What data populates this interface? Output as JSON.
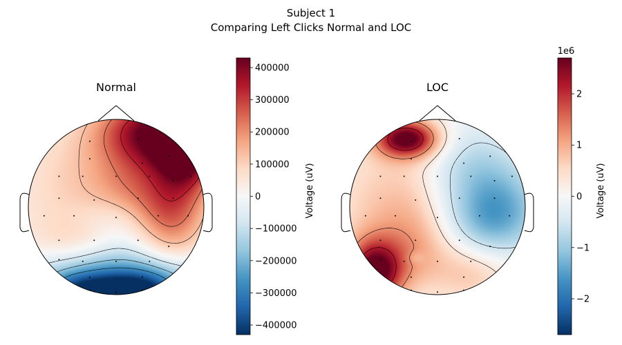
{
  "suptitle": {
    "line1": "Subject 1",
    "line2": "Comparing Left Clicks Normal and LOC"
  },
  "chart_data": [
    {
      "type": "heatmap",
      "title": "Normal",
      "colormap": "RdBu_r",
      "colorbar": {
        "label": "Voltage (uV)",
        "range": [
          -430000,
          430000
        ],
        "ticks": [
          400000,
          300000,
          200000,
          100000,
          0,
          -100000,
          -200000,
          -300000,
          -400000
        ],
        "tick_labels": [
          "400000",
          "300000",
          "200000",
          "100000",
          "0",
          "−100000",
          "−200000",
          "−300000",
          "−400000"
        ],
        "offset_label": ""
      },
      "blobs": [
        {
          "x": 0.45,
          "y": -0.85,
          "v": 430000,
          "sx": 0.45,
          "sy": 0.3
        },
        {
          "x": 0.8,
          "y": -0.55,
          "v": 330000,
          "sx": 0.25,
          "sy": 0.3
        },
        {
          "x": 0.62,
          "y": 0.1,
          "v": 230000,
          "sx": 0.3,
          "sy": 0.3
        },
        {
          "x": 0.2,
          "y": -0.25,
          "v": 120000,
          "sx": 0.35,
          "sy": 0.25
        },
        {
          "x": -0.5,
          "y": -0.3,
          "v": 90000,
          "sx": 0.5,
          "sy": 0.5
        },
        {
          "x": -0.45,
          "y": 0.35,
          "v": 70000,
          "sx": 0.4,
          "sy": 0.25
        },
        {
          "x": -0.2,
          "y": 0.12,
          "v": -35000,
          "sx": 0.35,
          "sy": 0.15
        },
        {
          "x": 0.05,
          "y": 0.35,
          "v": -50000,
          "sx": 0.3,
          "sy": 0.2
        },
        {
          "x": 0.0,
          "y": 0.78,
          "v": -240000,
          "sx": 0.65,
          "sy": 0.22
        },
        {
          "x": -0.35,
          "y": 0.98,
          "v": -320000,
          "sx": 0.35,
          "sy": 0.15
        },
        {
          "x": 0.3,
          "y": 0.98,
          "v": -310000,
          "sx": 0.3,
          "sy": 0.15
        },
        {
          "x": 0.65,
          "y": 0.5,
          "v": 40000,
          "sx": 0.25,
          "sy": 0.15
        }
      ],
      "contour_levels": [
        330000,
        230000,
        130000,
        -70000,
        -170000,
        -270000
      ],
      "sensors": [
        [
          -0.3,
          -0.75
        ],
        [
          0.25,
          -0.78
        ],
        [
          0.6,
          -0.58
        ],
        [
          -0.3,
          -0.55
        ],
        [
          0.3,
          -0.5
        ],
        [
          0.85,
          -0.35
        ],
        [
          -0.65,
          -0.35
        ],
        [
          -0.38,
          -0.35
        ],
        [
          0.0,
          -0.35
        ],
        [
          0.38,
          -0.35
        ],
        [
          0.65,
          -0.3
        ],
        [
          -0.65,
          -0.1
        ],
        [
          -0.25,
          -0.08
        ],
        [
          0.25,
          -0.1
        ],
        [
          0.65,
          -0.1
        ],
        [
          -0.82,
          0.1
        ],
        [
          -0.48,
          0.1
        ],
        [
          0.0,
          0.12
        ],
        [
          0.48,
          0.1
        ],
        [
          0.82,
          0.1
        ],
        [
          -0.65,
          0.38
        ],
        [
          -0.25,
          0.38
        ],
        [
          0.25,
          0.38
        ],
        [
          0.6,
          0.45
        ],
        [
          -0.65,
          0.6
        ],
        [
          -0.38,
          0.62
        ],
        [
          0.0,
          0.62
        ],
        [
          0.38,
          0.62
        ],
        [
          -0.3,
          0.8
        ],
        [
          0.3,
          0.8
        ],
        [
          -0.3,
          0.95
        ],
        [
          0.0,
          0.97
        ],
        [
          0.3,
          0.95
        ]
      ]
    },
    {
      "type": "heatmap",
      "title": "LOC",
      "colormap": "RdBu_r",
      "colorbar": {
        "label": "Voltage (uV)",
        "range": [
          -2700000,
          2700000
        ],
        "ticks": [
          2000000,
          1000000,
          0,
          -1000000,
          -2000000
        ],
        "tick_labels": [
          "2",
          "1",
          "0",
          "−1",
          "−2"
        ],
        "offset_label": "1e6"
      },
      "blobs": [
        {
          "x": -0.35,
          "y": -0.78,
          "v": 2700000,
          "sx": 0.25,
          "sy": 0.15
        },
        {
          "x": -0.72,
          "y": 0.75,
          "v": 2600000,
          "sx": 0.22,
          "sy": 0.25
        },
        {
          "x": -0.45,
          "y": -0.1,
          "v": 700000,
          "sx": 0.55,
          "sy": 0.55
        },
        {
          "x": -0.2,
          "y": 0.5,
          "v": 800000,
          "sx": 0.45,
          "sy": 0.35
        },
        {
          "x": 0.45,
          "y": 0.75,
          "v": 600000,
          "sx": 0.3,
          "sy": 0.25
        },
        {
          "x": 0.75,
          "y": 0.05,
          "v": -1200000,
          "sx": 0.35,
          "sy": 0.35
        },
        {
          "x": 0.4,
          "y": -0.45,
          "v": -800000,
          "sx": 0.35,
          "sy": 0.35
        },
        {
          "x": 0.4,
          "y": 0.25,
          "v": -700000,
          "sx": 0.3,
          "sy": 0.3
        },
        {
          "x": 0.05,
          "y": 0.0,
          "v": -200000,
          "sx": 0.2,
          "sy": 0.5
        },
        {
          "x": -0.25,
          "y": 0.58,
          "v": -300000,
          "sx": 0.07,
          "sy": 0.05
        }
      ],
      "contour_levels": [
        2150000,
        1250000,
        300000,
        -550000
      ],
      "sensors": [
        [
          -0.3,
          -0.75
        ],
        [
          0.25,
          -0.78
        ],
        [
          0.6,
          -0.58
        ],
        [
          -0.3,
          -0.55
        ],
        [
          0.3,
          -0.5
        ],
        [
          0.85,
          -0.35
        ],
        [
          -0.65,
          -0.35
        ],
        [
          -0.38,
          -0.35
        ],
        [
          0.0,
          -0.35
        ],
        [
          0.38,
          -0.35
        ],
        [
          0.65,
          -0.3
        ],
        [
          -0.65,
          -0.1
        ],
        [
          -0.25,
          -0.08
        ],
        [
          0.25,
          -0.1
        ],
        [
          0.65,
          -0.1
        ],
        [
          -0.82,
          0.1
        ],
        [
          -0.48,
          0.1
        ],
        [
          0.0,
          0.12
        ],
        [
          0.48,
          0.1
        ],
        [
          0.82,
          0.1
        ],
        [
          -0.65,
          0.38
        ],
        [
          -0.25,
          0.38
        ],
        [
          0.25,
          0.38
        ],
        [
          0.6,
          0.45
        ],
        [
          -0.65,
          0.6
        ],
        [
          -0.38,
          0.62
        ],
        [
          0.0,
          0.62
        ],
        [
          0.38,
          0.62
        ],
        [
          -0.3,
          0.8
        ],
        [
          0.3,
          0.8
        ],
        [
          -0.3,
          0.95
        ],
        [
          0.0,
          0.97
        ],
        [
          0.3,
          0.95
        ]
      ]
    }
  ]
}
